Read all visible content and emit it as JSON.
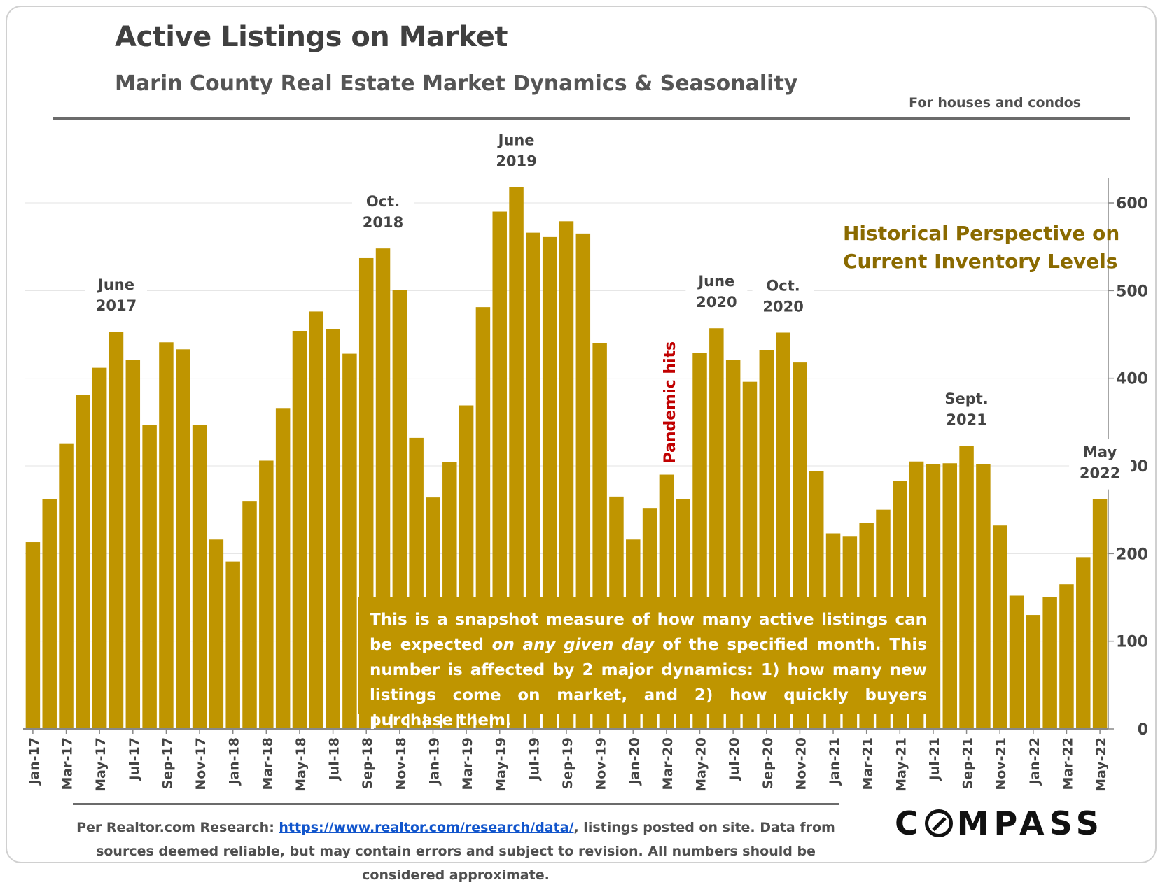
{
  "header": {
    "title": "Active Listings on Market",
    "subtitle": "Marin County Real Estate Market Dynamics & Seasonality",
    "note": "For houses and condos"
  },
  "historical_label": "Historical Perspective on\nCurrent Inventory Levels",
  "infobox": {
    "part1": "This is a snapshot measure of how many active listings can be expected ",
    "italic": "on any given day",
    "part2": " of the specified month. This number is affected by 2 major dynamics: 1) how many new listings come on market, and 2) how quickly buyers purchase them."
  },
  "footer": {
    "source_prefix": "Per Realtor.com Research: ",
    "source_link": "https://www.realtor.com/research/data/",
    "source_suffix": ", listings posted on site. Data from sources deemed reliable, but may contain errors and subject to revision. All numbers should be considered approximate.",
    "logo_left": "C",
    "logo_right": "MPASS"
  },
  "colors": {
    "bar": "#bf9500",
    "historical_text": "#8a6a00",
    "pandemic_text": "#c00000"
  },
  "chart_data": {
    "type": "bar",
    "title": "Active Listings on Market",
    "subtitle": "Marin County Real Estate Market Dynamics & Seasonality",
    "ylim": [
      0,
      600
    ],
    "yticks": [
      0,
      100,
      200,
      300,
      400,
      500,
      600
    ],
    "y_axis_position": "right",
    "grid": true,
    "categories": [
      "Jan-17",
      "Feb-17",
      "Mar-17",
      "Apr-17",
      "May-17",
      "Jun-17",
      "Jul-17",
      "Aug-17",
      "Sep-17",
      "Oct-17",
      "Nov-17",
      "Dec-17",
      "Jan-18",
      "Feb-18",
      "Mar-18",
      "Apr-18",
      "May-18",
      "Jun-18",
      "Jul-18",
      "Aug-18",
      "Sep-18",
      "Oct-18",
      "Nov-18",
      "Dec-18",
      "Jan-19",
      "Feb-19",
      "Mar-19",
      "Apr-19",
      "May-19",
      "Jun-19",
      "Jul-19",
      "Aug-19",
      "Sep-19",
      "Oct-19",
      "Nov-19",
      "Dec-19",
      "Jan-20",
      "Feb-20",
      "Mar-20",
      "Apr-20",
      "May-20",
      "Jun-20",
      "Jul-20",
      "Aug-20",
      "Sep-20",
      "Oct-20",
      "Nov-20",
      "Dec-20",
      "Jan-21",
      "Feb-21",
      "Mar-21",
      "Apr-21",
      "May-21",
      "Jun-21",
      "Jul-21",
      "Aug-21",
      "Sep-21",
      "Oct-21",
      "Nov-21",
      "Dec-21",
      "Jan-22",
      "Feb-22",
      "Mar-22",
      "Apr-22",
      "May-22"
    ],
    "visible_tick_labels": [
      "Jan-17",
      "Mar-17",
      "May-17",
      "Jul-17",
      "Sep-17",
      "Nov-17",
      "Jan-18",
      "Mar-18",
      "May-18",
      "Jul-18",
      "Sep-18",
      "Nov-18",
      "Jan-19",
      "Mar-19",
      "May-19",
      "Jul-19",
      "Sep-19",
      "Nov-19",
      "Jan-20",
      "Mar-20",
      "May-20",
      "Jul-20",
      "Sep-20",
      "Nov-20",
      "Jan-21",
      "Mar-21",
      "May-21",
      "Jul-21",
      "Sep-21",
      "Nov-21",
      "Jan-22",
      "Mar-22",
      "May-22"
    ],
    "values": [
      213,
      262,
      325,
      381,
      412,
      453,
      421,
      347,
      441,
      433,
      347,
      216,
      191,
      260,
      306,
      366,
      454,
      476,
      456,
      428,
      537,
      548,
      501,
      332,
      264,
      304,
      369,
      481,
      590,
      618,
      566,
      561,
      579,
      565,
      440,
      265,
      216,
      252,
      290,
      262,
      429,
      457,
      421,
      396,
      432,
      452,
      418,
      294,
      223,
      220,
      235,
      250,
      283,
      305,
      302,
      303,
      323,
      302,
      232,
      152,
      130,
      150,
      165,
      196,
      262
    ],
    "annotations": [
      {
        "category": "Jun-17",
        "text": "June\n2017"
      },
      {
        "category": "Oct-18",
        "text": "Oct.\n2018"
      },
      {
        "category": "Jun-19",
        "text": "June\n2019"
      },
      {
        "category": "Jun-20",
        "text": "June\n2020"
      },
      {
        "category": "Oct-20",
        "text": "Oct.\n2020"
      },
      {
        "category": "Sep-21",
        "text": "Sept.\n2021"
      },
      {
        "category": "May-22",
        "text": "May\n2022"
      },
      {
        "category": "Mar-20",
        "text": "Pandemic hits",
        "vertical": true
      }
    ]
  }
}
